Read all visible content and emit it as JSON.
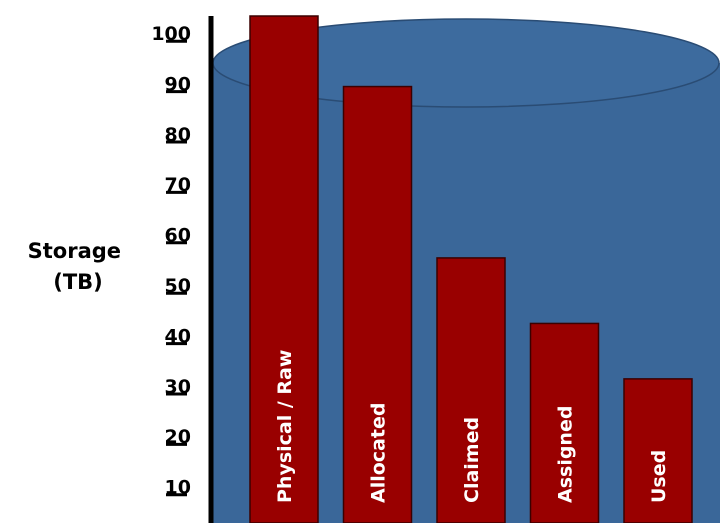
{
  "chart_data": {
    "type": "bar",
    "title": "",
    "xlabel": "",
    "ylabel_lines": [
      "Storage",
      "(TB)"
    ],
    "ylim": [
      0,
      100
    ],
    "yticks": [
      10,
      20,
      30,
      40,
      50,
      60,
      70,
      80,
      90,
      100
    ],
    "categories": [
      "Physical / Raw",
      "Allocated",
      "Claimed",
      "Assigned",
      "Used"
    ],
    "values": [
      100,
      86,
      52,
      39,
      28
    ],
    "category_label_orientation": "vertical",
    "grid": false,
    "legend": "none",
    "colors": {
      "bar_fill": "#990000",
      "bar_stroke": "#3b0000",
      "cylinder_fill": "#3a6799",
      "cylinder_stroke": "#2a4c74",
      "cylinder_top": "#3d6b9e",
      "axis": "#000000",
      "label_text": "#ffffff"
    }
  }
}
